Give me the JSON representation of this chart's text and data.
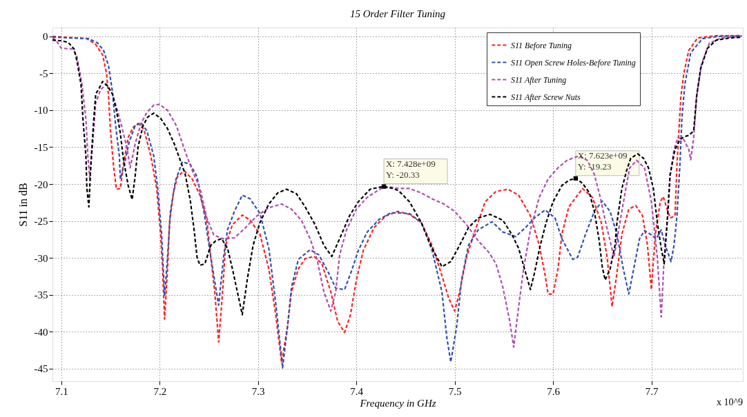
{
  "chart_data": {
    "type": "line",
    "title": "15 Order Filter Tuning",
    "xlabel": "Frequency in GHz",
    "ylabel": "S11 in dB",
    "xlim": [
      7.091,
      7.793
    ],
    "ylim": [
      -46.7,
      1.2
    ],
    "xticks": [
      7.1,
      7.2,
      7.3,
      7.4,
      7.5,
      7.6,
      7.7
    ],
    "yticks": [
      0,
      -5,
      -10,
      -15,
      -20,
      -25,
      -30,
      -35,
      -40,
      -45
    ],
    "grid": true,
    "legend": "top right",
    "line_style": "dashed",
    "marker": "none",
    "annotations": [
      {
        "text": "X: 7.428e+09\nY: -20.33",
        "x": 7.428,
        "y": -20.33
      },
      {
        "text": "X: 7.623e+09\nY: -19.23",
        "x": 7.623,
        "y": -19.23
      },
      "x 10^9"
    ],
    "series": [
      {
        "name": "S11 Before Tuning",
        "color": "#ff2020",
        "x": [
          7.091,
          7.126,
          7.135,
          7.142,
          7.146,
          7.148,
          7.15,
          7.153,
          7.156,
          7.16,
          7.163,
          7.168,
          7.173,
          7.178,
          7.184,
          7.191,
          7.197,
          7.201,
          7.203,
          7.205,
          7.208,
          7.21,
          7.214,
          7.218,
          7.225,
          7.233,
          7.241,
          7.248,
          7.252,
          7.256,
          7.26,
          7.264,
          7.267,
          7.274,
          7.284,
          7.292,
          7.302,
          7.311,
          7.318,
          7.324,
          7.33,
          7.334,
          7.341,
          7.348,
          7.357,
          7.365,
          7.374,
          7.381,
          7.388,
          7.394,
          7.4,
          7.407,
          7.418,
          7.43,
          7.442,
          7.454,
          7.466,
          7.477,
          7.487,
          7.494,
          7.5,
          7.505,
          7.512,
          7.521,
          7.531,
          7.542,
          7.554,
          7.565,
          7.577,
          7.586,
          7.592,
          7.595,
          7.6,
          7.605,
          7.609,
          7.616,
          7.63,
          7.64,
          7.649,
          7.655,
          7.66,
          7.664,
          7.67,
          7.677,
          7.684,
          7.691,
          7.696,
          7.7,
          7.704,
          7.709,
          7.712,
          7.716,
          7.719,
          7.724,
          7.726,
          7.73,
          7.733,
          7.738,
          7.747,
          7.766,
          7.792
        ],
        "values": [
          0.0,
          -0.3,
          -1.1,
          -2.5,
          -5.0,
          -8.1,
          -12.8,
          -17.4,
          -20.7,
          -20.6,
          -17.4,
          -13.7,
          -12.3,
          -11.8,
          -12.6,
          -16.2,
          -20.6,
          -26.8,
          -31.5,
          -38.3,
          -31.5,
          -25.2,
          -21.2,
          -19.0,
          -18.2,
          -19.3,
          -21.5,
          -24.9,
          -29.9,
          -34.6,
          -41.4,
          -34.6,
          -28.3,
          -25.5,
          -24.2,
          -24.9,
          -26.8,
          -31.5,
          -37.7,
          -44.2,
          -39.3,
          -34.6,
          -31.5,
          -30.1,
          -29.8,
          -30.8,
          -34.6,
          -38.6,
          -40.1,
          -37.7,
          -33.0,
          -29.0,
          -25.9,
          -24.3,
          -23.7,
          -24.1,
          -25.2,
          -28.3,
          -32.4,
          -35.5,
          -37.2,
          -34.6,
          -29.9,
          -26.2,
          -22.4,
          -21.0,
          -20.7,
          -21.5,
          -24.3,
          -28.3,
          -32.4,
          -34.9,
          -34.9,
          -31.5,
          -26.8,
          -23.1,
          -20.6,
          -21.8,
          -25.2,
          -29.9,
          -36.6,
          -33.0,
          -26.8,
          -23.4,
          -22.9,
          -24.3,
          -28.3,
          -34.3,
          -26.8,
          -22.4,
          -21.7,
          -23.4,
          -24.6,
          -24.3,
          -17.4,
          -8.1,
          -5.0,
          -1.9,
          -0.2,
          0.1,
          0.1
        ]
      },
      {
        "name": "S11 Open Screw Holes-Before Tuning",
        "color": "#3050b0",
        "x": [
          7.091,
          7.128,
          7.137,
          7.143,
          7.148,
          7.152,
          7.155,
          7.159,
          7.16,
          7.164,
          7.169,
          7.175,
          7.181,
          7.187,
          7.194,
          7.198,
          7.202,
          7.205,
          7.208,
          7.211,
          7.216,
          7.223,
          7.231,
          7.238,
          7.245,
          7.252,
          7.257,
          7.26,
          7.265,
          7.269,
          7.276,
          7.284,
          7.292,
          7.302,
          7.311,
          7.318,
          7.325,
          7.33,
          7.334,
          7.341,
          7.353,
          7.362,
          7.372,
          7.379,
          7.388,
          7.395,
          7.402,
          7.411,
          7.423,
          7.435,
          7.443,
          7.454,
          7.466,
          7.477,
          7.487,
          7.492,
          7.496,
          7.502,
          7.507,
          7.514,
          7.524,
          7.538,
          7.549,
          7.562,
          7.572,
          7.581,
          7.592,
          7.602,
          7.609,
          7.62,
          7.625,
          7.633,
          7.642,
          7.65,
          7.658,
          7.665,
          7.671,
          7.677,
          7.682,
          7.688,
          7.693,
          7.699,
          7.705,
          7.71,
          7.714,
          7.72,
          7.723,
          7.726,
          7.729,
          7.731,
          7.734,
          7.74,
          7.752,
          7.768,
          7.792
        ],
        "values": [
          -0.1,
          -0.3,
          -0.9,
          -1.9,
          -4.0,
          -7.5,
          -11.8,
          -16.2,
          -19.3,
          -17.4,
          -14.3,
          -12.1,
          -11.7,
          -12.8,
          -16.2,
          -20.6,
          -26.8,
          -35.2,
          -29.9,
          -23.7,
          -19.6,
          -17.0,
          -17.3,
          -19.0,
          -23.7,
          -29.9,
          -34.0,
          -36.4,
          -29.9,
          -26.2,
          -23.7,
          -21.5,
          -22.0,
          -24.0,
          -28.7,
          -36.1,
          -44.9,
          -39.3,
          -34.0,
          -30.2,
          -28.9,
          -29.6,
          -32.1,
          -34.1,
          -34.3,
          -31.8,
          -29.0,
          -26.5,
          -24.8,
          -23.9,
          -23.9,
          -24.0,
          -25.2,
          -29.0,
          -34.6,
          -40.8,
          -44.1,
          -39.3,
          -33.0,
          -28.3,
          -26.2,
          -25.1,
          -26.5,
          -27.1,
          -25.9,
          -24.6,
          -23.5,
          -24.6,
          -27.4,
          -30.2,
          -29.9,
          -26.8,
          -23.7,
          -22.3,
          -23.7,
          -26.8,
          -31.2,
          -34.9,
          -31.5,
          -27.4,
          -26.3,
          -26.8,
          -27.4,
          -26.2,
          -28.3,
          -30.5,
          -28.3,
          -24.3,
          -17.4,
          -11.2,
          -6.5,
          -2.2,
          -0.3,
          0.0,
          0.1
        ]
      },
      {
        "name": "S11 After Tuning",
        "color": "#b04db0",
        "x": [
          7.091,
          7.095,
          7.1,
          7.112,
          7.116,
          7.121,
          7.125,
          7.127,
          7.129,
          7.132,
          7.135,
          7.14,
          7.146,
          7.152,
          7.157,
          7.162,
          7.167,
          7.17,
          7.175,
          7.181,
          7.187,
          7.194,
          7.2,
          7.208,
          7.217,
          7.226,
          7.233,
          7.241,
          7.248,
          7.255,
          7.264,
          7.276,
          7.285,
          7.299,
          7.311,
          7.324,
          7.334,
          7.344,
          7.353,
          7.36,
          7.367,
          7.374,
          7.379,
          7.383,
          7.39,
          7.4,
          7.411,
          7.425,
          7.435,
          7.443,
          7.454,
          7.466,
          7.477,
          7.489,
          7.5,
          7.512,
          7.524,
          7.535,
          7.542,
          7.549,
          7.556,
          7.56,
          7.564,
          7.57,
          7.577,
          7.586,
          7.595,
          7.605,
          7.614,
          7.626,
          7.635,
          7.642,
          7.648,
          7.654,
          7.662,
          7.668,
          7.674,
          7.678,
          7.685,
          7.693,
          7.7,
          7.706,
          7.71,
          7.713,
          7.717,
          7.719,
          7.723,
          7.727,
          7.733,
          7.738,
          7.74,
          7.743,
          7.746,
          7.751,
          7.759,
          7.771,
          7.792
        ],
        "values": [
          -0.2,
          -0.6,
          -1.6,
          -1.7,
          -2.8,
          -6.5,
          -11.2,
          -16.2,
          -19.3,
          -14.3,
          -9.0,
          -7.2,
          -6.5,
          -7.8,
          -10.0,
          -12.5,
          -15.3,
          -17.8,
          -14.6,
          -11.8,
          -10.3,
          -9.3,
          -9.2,
          -10.0,
          -12.1,
          -15.6,
          -18.1,
          -20.6,
          -24.6,
          -26.9,
          -27.4,
          -27.3,
          -26.2,
          -24.3,
          -23.2,
          -22.7,
          -23.4,
          -24.9,
          -27.4,
          -30.2,
          -34.6,
          -37.2,
          -34.6,
          -29.6,
          -26.2,
          -23.4,
          -21.8,
          -20.6,
          -20.4,
          -20.6,
          -20.6,
          -21.2,
          -22.0,
          -22.7,
          -23.7,
          -25.5,
          -27.7,
          -29.3,
          -30.8,
          -34.0,
          -38.6,
          -42.1,
          -37.7,
          -31.5,
          -26.2,
          -21.8,
          -19.3,
          -17.8,
          -16.8,
          -16.2,
          -16.8,
          -18.7,
          -21.8,
          -25.5,
          -29.9,
          -25.2,
          -20.6,
          -17.8,
          -16.8,
          -17.8,
          -22.4,
          -29.9,
          -38.0,
          -29.9,
          -23.7,
          -19.0,
          -15.3,
          -13.7,
          -14.0,
          -15.3,
          -16.7,
          -13.7,
          -8.1,
          -3.7,
          -0.9,
          -0.2,
          0.0
        ]
      },
      {
        "name": "S11 After Screw Nuts",
        "color": "#000000",
        "x": [
          7.091,
          7.1,
          7.107,
          7.113,
          7.116,
          7.12,
          7.122,
          7.125,
          7.126,
          7.128,
          7.13,
          7.133,
          7.135,
          7.139,
          7.142,
          7.147,
          7.152,
          7.156,
          7.16,
          7.163,
          7.168,
          7.172,
          7.175,
          7.178,
          7.183,
          7.188,
          7.194,
          7.201,
          7.208,
          7.215,
          7.221,
          7.226,
          7.231,
          7.235,
          7.238,
          7.241,
          7.246,
          7.252,
          7.257,
          7.263,
          7.269,
          7.274,
          7.279,
          7.284,
          7.289,
          7.295,
          7.302,
          7.311,
          7.32,
          7.329,
          7.339,
          7.348,
          7.358,
          7.367,
          7.375,
          7.383,
          7.393,
          7.402,
          7.414,
          7.428,
          7.437,
          7.443,
          7.454,
          7.466,
          7.477,
          7.487,
          7.496,
          7.505,
          7.514,
          7.524,
          7.536,
          7.549,
          7.558,
          7.565,
          7.571,
          7.577,
          7.581,
          7.587,
          7.593,
          7.6,
          7.609,
          7.616,
          7.623,
          7.63,
          7.637,
          7.642,
          7.647,
          7.65,
          7.653,
          7.658,
          7.663,
          7.665,
          7.67,
          7.675,
          7.679,
          7.686,
          7.692,
          7.697,
          7.702,
          7.706,
          7.71,
          7.713,
          7.716,
          7.719,
          7.724,
          7.729,
          7.733,
          7.738,
          7.743,
          7.746,
          7.75,
          7.757,
          7.766,
          7.78,
          7.792
        ],
        "values": [
          -0.5,
          -0.6,
          -0.8,
          -1.7,
          -3.4,
          -6.5,
          -11.2,
          -16.2,
          -20.6,
          -23.1,
          -17.4,
          -11.2,
          -7.8,
          -6.9,
          -6.1,
          -6.7,
          -7.8,
          -10.0,
          -13.1,
          -16.5,
          -20.2,
          -22.1,
          -19.0,
          -15.0,
          -12.1,
          -10.9,
          -10.4,
          -11.1,
          -12.5,
          -14.6,
          -16.8,
          -18.7,
          -22.1,
          -26.2,
          -29.9,
          -31.0,
          -30.8,
          -28.3,
          -27.7,
          -27.4,
          -28.7,
          -31.5,
          -34.6,
          -37.7,
          -33.0,
          -28.3,
          -25.2,
          -22.7,
          -21.2,
          -20.7,
          -21.3,
          -23.1,
          -25.5,
          -28.3,
          -29.8,
          -27.4,
          -24.3,
          -22.4,
          -20.7,
          -20.3,
          -20.6,
          -20.9,
          -22.4,
          -25.2,
          -28.7,
          -31.2,
          -30.5,
          -28.3,
          -25.9,
          -24.6,
          -24.1,
          -24.9,
          -26.8,
          -28.7,
          -31.5,
          -34.3,
          -32.1,
          -28.3,
          -25.2,
          -22.4,
          -20.2,
          -19.5,
          -19.2,
          -19.9,
          -21.2,
          -23.7,
          -27.7,
          -31.2,
          -33.0,
          -31.5,
          -28.3,
          -25.2,
          -20.6,
          -18.1,
          -16.5,
          -15.9,
          -16.5,
          -17.8,
          -20.6,
          -25.2,
          -28.7,
          -30.8,
          -25.2,
          -18.7,
          -15.3,
          -14.0,
          -13.6,
          -13.4,
          -12.8,
          -8.1,
          -4.4,
          -1.6,
          -0.5,
          -0.2,
          -0.1
        ]
      }
    ]
  }
}
